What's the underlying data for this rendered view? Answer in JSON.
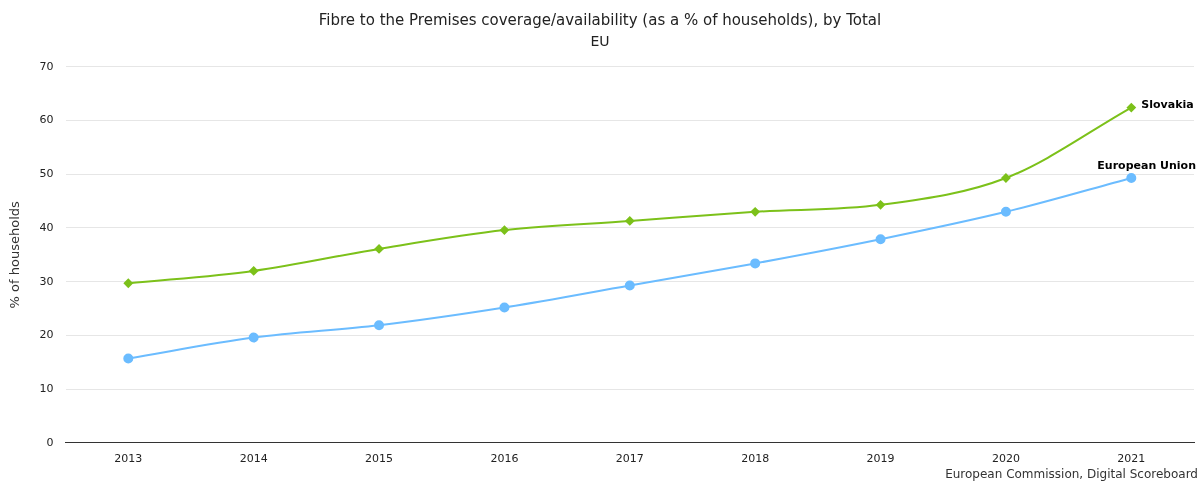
{
  "chart_data": {
    "type": "line",
    "title": "Fibre to the Premises coverage/availability (as a % of households), by Total",
    "subtitle": "EU",
    "ylabel": "% of households",
    "categories": [
      "2013",
      "2014",
      "2015",
      "2016",
      "2017",
      "2018",
      "2019",
      "2020",
      "2021"
    ],
    "series": [
      {
        "name": "Slovakia",
        "color": "#7cc11a",
        "marker": "diamond",
        "values": [
          29.7,
          32.0,
          36.1,
          39.6,
          41.3,
          43.0,
          44.3,
          49.3,
          62.4
        ]
      },
      {
        "name": "European Union",
        "color": "#6bbcff",
        "marker": "circle",
        "values": [
          15.7,
          19.6,
          21.9,
          25.2,
          29.3,
          33.4,
          37.9,
          43.0,
          49.3
        ]
      }
    ],
    "ylim": [
      0,
      70
    ],
    "yticks": [
      0,
      10,
      20,
      30,
      40,
      50,
      60,
      70
    ],
    "grid": "y",
    "legend": false,
    "annotations": [
      "European Commission, Digital Scoreboard"
    ]
  }
}
